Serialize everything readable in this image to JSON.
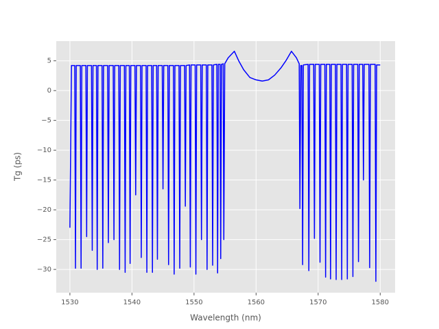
{
  "chart_data": {
    "type": "line",
    "xlabel": "Wavelength (nm)",
    "ylabel": "Tg (ps)",
    "xlim": [
      1527.8,
      1582.4
    ],
    "ylim": [
      -33.9,
      8.3
    ],
    "xticks": [
      1530,
      1540,
      1550,
      1560,
      1570,
      1580
    ],
    "yticks": [
      {
        "value": -30,
        "label": "−30"
      },
      {
        "value": -25,
        "label": "−25"
      },
      {
        "value": -20,
        "label": "−20"
      },
      {
        "value": -15,
        "label": "−15"
      },
      {
        "value": -10,
        "label": "−10"
      },
      {
        "value": -5,
        "label": "−5"
      },
      0,
      5
    ],
    "grid": true,
    "x": [
      1530,
      1530.25,
      1530.78,
      1530.9,
      1531.02,
      1531.68,
      1531.8,
      1531.92,
      1532.58,
      1532.7,
      1532.82,
      1533.48,
      1533.6,
      1533.72,
      1534.28,
      1534.4,
      1534.52,
      1535.18,
      1535.3,
      1535.42,
      1536.08,
      1536.2,
      1536.32,
      1536.98,
      1537.1,
      1537.22,
      1537.88,
      1538.0,
      1538.12,
      1538.78,
      1538.9,
      1539.02,
      1539.58,
      1539.7,
      1539.82,
      1540.48,
      1540.6,
      1540.72,
      1541.38,
      1541.5,
      1541.62,
      1542.28,
      1542.4,
      1542.52,
      1543.18,
      1543.3,
      1543.42,
      1543.98,
      1544.1,
      1544.22,
      1544.88,
      1545.0,
      1545.12,
      1545.78,
      1545.9,
      1546.02,
      1546.68,
      1546.8,
      1546.92,
      1547.58,
      1547.7,
      1547.82,
      1548.48,
      1548.6,
      1548.72,
      1549.28,
      1549.4,
      1549.52,
      1550.18,
      1550.3,
      1550.42,
      1551.08,
      1551.2,
      1551.32,
      1551.98,
      1552.1,
      1552.22,
      1552.88,
      1553.0,
      1553.12,
      1553.68,
      1553.8,
      1553.92,
      1554.2,
      1554.3,
      1554.42,
      1554.7,
      1554.8,
      1554.95,
      1555.5,
      1556.5,
      1557.2,
      1558,
      1559,
      1560,
      1561,
      1562,
      1563,
      1564,
      1564.8,
      1565.7,
      1566.5,
      1566.95,
      1567.06,
      1567.2,
      1567.38,
      1567.5,
      1567.62,
      1568.38,
      1568.5,
      1568.62,
      1569.28,
      1569.4,
      1569.52,
      1570.18,
      1570.3,
      1570.42,
      1571.08,
      1571.2,
      1571.32,
      1571.88,
      1572.0,
      1572.12,
      1572.78,
      1572.9,
      1573.02,
      1573.68,
      1573.8,
      1573.92,
      1574.58,
      1574.7,
      1574.82,
      1575.48,
      1575.6,
      1575.72,
      1576.38,
      1576.5,
      1576.62,
      1577.18,
      1577.3,
      1577.42,
      1578.18,
      1578.3,
      1578.42,
      1579.18,
      1579.3,
      1579.42,
      1580
    ],
    "series": [
      {
        "color": "#0000ff",
        "values": [
          -23,
          4.2,
          4.2,
          -29.8,
          4.2,
          4.2,
          -29.8,
          4.2,
          4.2,
          -24.5,
          4.2,
          4.2,
          -26.8,
          4.2,
          4.2,
          -30,
          4.2,
          4.2,
          -29.8,
          4.2,
          4.2,
          -25.5,
          4.2,
          4.2,
          -25,
          4.2,
          4.2,
          -30,
          4.2,
          4.2,
          -30.5,
          4.2,
          4.2,
          -29,
          4.2,
          4.2,
          -17.5,
          4.2,
          4.2,
          -28,
          4.2,
          4.2,
          -30.5,
          4.2,
          4.2,
          -30.5,
          4.2,
          4.2,
          -28.3,
          4.2,
          4.2,
          -16.5,
          4.2,
          4.2,
          -29.2,
          4.2,
          4.2,
          -30.8,
          4.2,
          4.2,
          -29.8,
          4.2,
          4.2,
          -19.4,
          4.2,
          4.3,
          -29.6,
          4.3,
          4.3,
          -30.8,
          4.3,
          4.3,
          -25,
          4.3,
          4.3,
          -30,
          4.3,
          4.3,
          -29.3,
          4.3,
          4.4,
          -30.6,
          4.4,
          4.4,
          -28.2,
          4.4,
          4.5,
          -25,
          4.5,
          5.5,
          6.6,
          5,
          3.5,
          2.2,
          1.8,
          1.6,
          1.8,
          2.6,
          3.8,
          5,
          6.6,
          5.5,
          4.5,
          -19.8,
          4.2,
          4.2,
          -29.2,
          4.3,
          4.4,
          -30.2,
          4.4,
          4.4,
          -24.8,
          4.4,
          4.4,
          -28.8,
          4.4,
          4.4,
          -31.3,
          4.4,
          4.4,
          -31.6,
          4.4,
          4.4,
          -31.7,
          4.4,
          4.4,
          -31.7,
          4.4,
          4.4,
          -31.6,
          4.4,
          4.4,
          -31.2,
          4.4,
          4.4,
          -28.7,
          4.4,
          4.4,
          -15,
          4.4,
          4.4,
          -29.7,
          4.4,
          4.4,
          -32,
          4.3,
          4.3
        ]
      }
    ]
  }
}
